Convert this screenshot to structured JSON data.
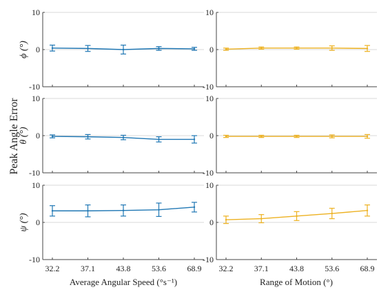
{
  "figure": {
    "ylabel": "Peak Angle Error",
    "xlabel_left": "Average Angular Speed (°s⁻¹)",
    "xlabel_right": "Range of Motion (°)",
    "colors": {
      "left": "#1f77b4",
      "right": "#edb120",
      "grid": "#d9d9d9",
      "axis": "#444444"
    }
  },
  "chart_data": [
    {
      "type": "line",
      "panel": "left-phi",
      "ylabel": "ϕ (°)",
      "xlabel": "",
      "categories": [
        "32.2",
        "37.1",
        "43.8",
        "53.6",
        "68.9"
      ],
      "ylim": [
        -10,
        10
      ],
      "yticks": [
        "10",
        "0",
        "-10"
      ],
      "grid": true,
      "series": [
        {
          "values": [
            0.4,
            0.3,
            0.0,
            0.3,
            0.2
          ],
          "errors": [
            0.8,
            0.8,
            1.2,
            0.5,
            0.4
          ]
        }
      ]
    },
    {
      "type": "line",
      "panel": "right-phi",
      "ylabel": "",
      "xlabel": "",
      "categories": [
        "32.2",
        "37.1",
        "43.8",
        "53.6",
        "68.9"
      ],
      "ylim": [
        -10,
        10
      ],
      "yticks": [
        "10",
        "0",
        "-10"
      ],
      "grid": true,
      "series": [
        {
          "values": [
            0.1,
            0.4,
            0.4,
            0.4,
            0.3
          ],
          "errors": [
            0.3,
            0.3,
            0.3,
            0.6,
            0.8
          ]
        }
      ]
    },
    {
      "type": "line",
      "panel": "left-theta",
      "ylabel": "θ (°)",
      "xlabel": "",
      "categories": [
        "32.2",
        "37.1",
        "43.8",
        "53.6",
        "68.9"
      ],
      "ylim": [
        -10,
        10
      ],
      "yticks": [
        "10",
        "0",
        "-10"
      ],
      "grid": true,
      "series": [
        {
          "values": [
            -0.2,
            -0.3,
            -0.5,
            -1.0,
            -1.0
          ],
          "errors": [
            0.4,
            0.6,
            0.6,
            0.7,
            1.0
          ]
        }
      ]
    },
    {
      "type": "line",
      "panel": "right-theta",
      "ylabel": "",
      "xlabel": "",
      "categories": [
        "32.2",
        "37.1",
        "43.8",
        "53.6",
        "68.9"
      ],
      "ylim": [
        -10,
        10
      ],
      "yticks": [
        "10",
        "0",
        "-10"
      ],
      "grid": true,
      "series": [
        {
          "values": [
            -0.2,
            -0.2,
            -0.2,
            -0.2,
            -0.2
          ],
          "errors": [
            0.3,
            0.3,
            0.3,
            0.4,
            0.5
          ]
        }
      ]
    },
    {
      "type": "line",
      "panel": "left-psi",
      "ylabel": "ψ (°)",
      "xlabel": "Average Angular Speed (°s⁻¹)",
      "categories": [
        "32.2",
        "37.1",
        "43.8",
        "53.6",
        "68.9"
      ],
      "ylim": [
        -10,
        10
      ],
      "yticks": [
        "10",
        "0",
        "-10"
      ],
      "grid": true,
      "series": [
        {
          "values": [
            3.1,
            3.1,
            3.2,
            3.4,
            4.1
          ],
          "errors": [
            1.4,
            1.6,
            1.5,
            1.8,
            1.3
          ]
        }
      ]
    },
    {
      "type": "line",
      "panel": "right-psi",
      "ylabel": "",
      "xlabel": "Range of Motion (°)",
      "categories": [
        "32.2",
        "37.1",
        "43.8",
        "53.6",
        "68.9"
      ],
      "ylim": [
        -10,
        10
      ],
      "yticks": [
        "10",
        "0",
        "-10"
      ],
      "grid": true,
      "series": [
        {
          "values": [
            0.7,
            1.0,
            1.7,
            2.4,
            3.2
          ],
          "errors": [
            1.0,
            1.1,
            1.2,
            1.4,
            1.5
          ]
        }
      ]
    }
  ]
}
